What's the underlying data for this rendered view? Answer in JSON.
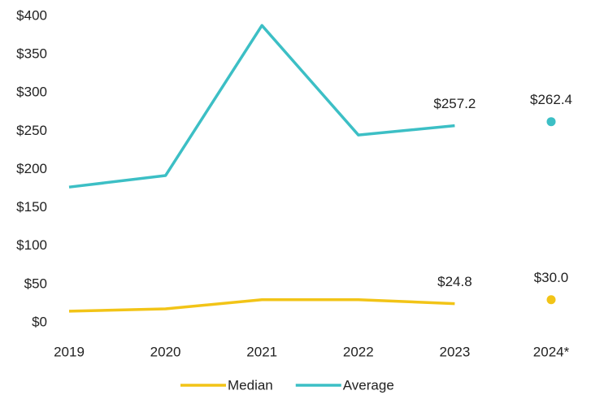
{
  "chart_data": {
    "type": "line",
    "categories": [
      "2019",
      "2020",
      "2021",
      "2022",
      "2023",
      "2024*"
    ],
    "series": [
      {
        "name": "Median",
        "color": "#f2c417",
        "values": [
          15,
          18,
          30,
          30,
          24.8,
          30.0
        ],
        "value_labels": [
          null,
          null,
          null,
          null,
          "$24.8",
          "$30.0"
        ]
      },
      {
        "name": "Average",
        "color": "#3cbfc5",
        "values": [
          177,
          192,
          388,
          245,
          257.2,
          262.4
        ],
        "value_labels": [
          null,
          null,
          null,
          null,
          "$257.2",
          "$262.4"
        ]
      }
    ],
    "ylim": [
      0,
      400
    ],
    "yticks": [
      {
        "value": 0,
        "label": "$0"
      },
      {
        "value": 50,
        "label": "$50"
      },
      {
        "value": 100,
        "label": "$100"
      },
      {
        "value": 150,
        "label": "$150"
      },
      {
        "value": 200,
        "label": "$200"
      },
      {
        "value": 250,
        "label": "$250"
      },
      {
        "value": 300,
        "label": "$300"
      },
      {
        "value": 350,
        "label": "$350"
      },
      {
        "value": 400,
        "label": "$400"
      }
    ],
    "grid": false,
    "legend": "bottom"
  }
}
